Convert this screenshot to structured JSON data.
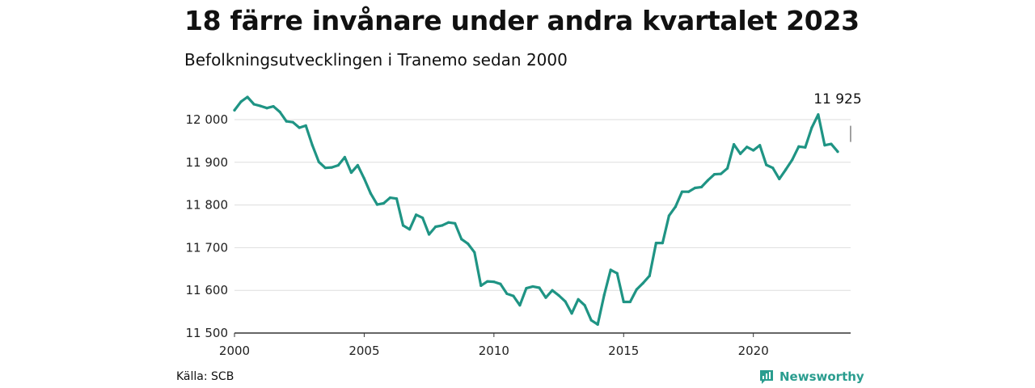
{
  "title": "18 färre invånare under andra kvartalet 2023",
  "subtitle": "Befolkningsutvecklingen i Tranemo sedan 2000",
  "source": "Källa: SCB",
  "brand": "Newsworthy",
  "colors": {
    "line": "#1f9484",
    "grid": "#dddddd",
    "brand": "#2a9d8f"
  },
  "chart_data": {
    "type": "line",
    "title": "",
    "xlabel": "",
    "ylabel": "",
    "xlim": [
      2000,
      2023.75
    ],
    "ylim": [
      11500,
      12000
    ],
    "grid": true,
    "x_ticks": [
      {
        "value": 2000,
        "label": "2000"
      },
      {
        "value": 2005,
        "label": "2005"
      },
      {
        "value": 2010,
        "label": "2010"
      },
      {
        "value": 2015,
        "label": "2015"
      },
      {
        "value": 2020,
        "label": "2020"
      }
    ],
    "y_ticks": [
      {
        "value": 11500,
        "label": "11 500"
      },
      {
        "value": 11600,
        "label": "11 600"
      },
      {
        "value": 11700,
        "label": "11 700"
      },
      {
        "value": 11800,
        "label": "11 800"
      },
      {
        "value": 11900,
        "label": "11 900"
      },
      {
        "value": 12000,
        "label": "12 000"
      }
    ],
    "annotation": {
      "x": 2023.25,
      "y": 11925,
      "label": "11 925"
    },
    "series": [
      {
        "x": [
          2000.0,
          2000.25,
          2000.5,
          2000.75,
          2001.0,
          2001.25,
          2001.5,
          2001.75,
          2002.0,
          2002.25,
          2002.5,
          2002.75,
          2003.0,
          2003.25,
          2003.5,
          2003.75,
          2004.0,
          2004.25,
          2004.5,
          2004.75,
          2005.0,
          2005.25,
          2005.5,
          2005.75,
          2006.0,
          2006.25,
          2006.5,
          2006.75,
          2007.0,
          2007.25,
          2007.5,
          2007.75,
          2008.0,
          2008.25,
          2008.5,
          2008.75,
          2009.0,
          2009.25,
          2009.5,
          2009.75,
          2010.0,
          2010.25,
          2010.5,
          2010.75,
          2011.0,
          2011.25,
          2011.5,
          2011.75,
          2012.0,
          2012.25,
          2012.5,
          2012.75,
          2013.0,
          2013.25,
          2013.5,
          2013.75,
          2014.0,
          2014.25,
          2014.5,
          2014.75,
          2015.0,
          2015.25,
          2015.5,
          2015.75,
          2016.0,
          2016.25,
          2016.5,
          2016.75,
          2017.0,
          2017.25,
          2017.5,
          2017.75,
          2018.0,
          2018.25,
          2018.5,
          2018.75,
          2019.0,
          2019.25,
          2019.5,
          2019.75,
          2020.0,
          2020.25,
          2020.5,
          2020.75,
          2021.0,
          2021.25,
          2021.5,
          2021.75,
          2022.0,
          2022.25,
          2022.5,
          2022.75,
          2023.0,
          2023.25
        ],
        "values": [
          12022,
          12042,
          12053,
          12036,
          12032,
          12027,
          12031,
          12018,
          11996,
          11994,
          11981,
          11986,
          11940,
          11901,
          11887,
          11888,
          11893,
          11912,
          11876,
          11893,
          11862,
          11827,
          11801,
          11804,
          11817,
          11815,
          11752,
          11743,
          11777,
          11770,
          11731,
          11749,
          11752,
          11759,
          11757,
          11720,
          11709,
          11689,
          11611,
          11621,
          11620,
          11615,
          11592,
          11587,
          11565,
          11605,
          11609,
          11606,
          11583,
          11600,
          11588,
          11574,
          11546,
          11579,
          11565,
          11530,
          11520,
          11589,
          11648,
          11640,
          11573,
          11573,
          11602,
          11617,
          11634,
          11711,
          11711,
          11775,
          11796,
          11831,
          11831,
          11840,
          11842,
          11858,
          11872,
          11873,
          11886,
          11942,
          11920,
          11936,
          11928,
          11940,
          11894,
          11887,
          11861,
          11883,
          11906,
          11937,
          11935,
          11981,
          12012,
          11940,
          11943,
          11925
        ]
      }
    ]
  }
}
